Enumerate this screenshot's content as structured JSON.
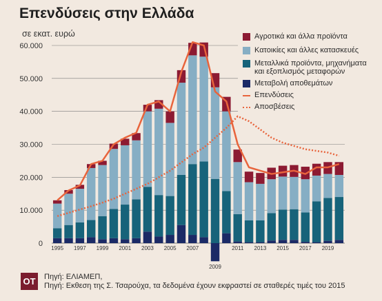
{
  "title": "Επενδύσεις στην Ελλάδα",
  "unit_label": "σε εκατ. ευρώ",
  "colors": {
    "agri": "#8c1a32",
    "housing": "#86aec4",
    "machinery": "#17637a",
    "inventory": "#1b2a66",
    "investment_line": "#e8643c",
    "depreciation_line": "#e8643c"
  },
  "legend": [
    {
      "key": "agri",
      "label": "Αγροτικά και άλλα προϊόντα"
    },
    {
      "key": "housing",
      "label": "Κατοικίες και άλλες κατασκευές"
    },
    {
      "key": "machinery",
      "label": "Μεταλλικά προϊόντα, μηχανήματα και εξοπλισμός μεταφορών"
    },
    {
      "key": "inventory",
      "label": "Μεταβολή αποθεμάτων"
    },
    {
      "key": "investment_line",
      "label": "Επενδύσεις"
    },
    {
      "key": "depreciation_line",
      "label": "Αποσβέσεις"
    }
  ],
  "footer": {
    "badge": "ΟΤ",
    "source_line1": "Πηγή: ΕΛΙΑΜΕΠ,",
    "source_line2": "Πηγή: Εκθεση της Σ. Τσαρούχα, τα δεδομένα έχουν εκφραστεί σε σταθερές τιμές του 2015"
  },
  "chart_data": {
    "type": "bar",
    "stacked": true,
    "categories": [
      "1995",
      "1996",
      "1997",
      "1998",
      "1999",
      "2000",
      "2001",
      "2002",
      "2003",
      "2004",
      "2005",
      "2006",
      "2007",
      "2008",
      "2009",
      "2010",
      "2011",
      "2012",
      "2013",
      "2014",
      "2015",
      "2016",
      "2017",
      "2018",
      "2019",
      "2020"
    ],
    "x_tick_labels": [
      "1995",
      "1997",
      "1999",
      "2001",
      "2003",
      "2005",
      "2007",
      "2009",
      "2011",
      "2013",
      "2015",
      "2017",
      "2019"
    ],
    "ylim": [
      -6000,
      62000
    ],
    "y_ticks": [
      0,
      10000,
      20000,
      30000,
      40000,
      50000,
      60000
    ],
    "y_tick_labels": [
      "0",
      "10.000",
      "20.000",
      "30.000",
      "40.000",
      "50.000",
      "60.000"
    ],
    "series": [
      {
        "name": "Μεταβολή αποθεμάτων",
        "key": "inventory",
        "values": [
          1500,
          1500,
          1500,
          1800,
          1200,
          1500,
          1200,
          1500,
          3500,
          2000,
          2500,
          5500,
          2500,
          1800,
          -5500,
          3000,
          500,
          300,
          300,
          800,
          1000,
          1000,
          400,
          300,
          700,
          1000
        ]
      },
      {
        "name": "Μεταλλικά προϊόντα, μηχανήματα και εξοπλισμός μεταφορών",
        "key": "machinery",
        "values": [
          3000,
          4000,
          4800,
          5200,
          7000,
          8900,
          10500,
          11800,
          13600,
          12600,
          11800,
          15200,
          21500,
          23000,
          19500,
          12800,
          8300,
          6600,
          6600,
          8300,
          9200,
          9300,
          8900,
          12400,
          13000,
          13000
        ]
      },
      {
        "name": "Κατοικίες και άλλες κατασκευές",
        "key": "housing",
        "values": [
          7500,
          9500,
          10200,
          15800,
          15500,
          18200,
          18000,
          17900,
          22900,
          26200,
          22200,
          28000,
          33000,
          31800,
          27800,
          24200,
          15800,
          11600,
          11100,
          10300,
          10000,
          9800,
          10100,
          7800,
          7300,
          6700
        ]
      },
      {
        "name": "Αγροτικά και άλλα προϊόντα",
        "key": "agri",
        "values": [
          1000,
          1100,
          1200,
          1200,
          1300,
          1600,
          2000,
          2200,
          2000,
          2600,
          3500,
          3800,
          3800,
          4300,
          4300,
          4400,
          3800,
          3200,
          3300,
          3500,
          3300,
          3600,
          3800,
          3600,
          3600,
          3900
        ]
      }
    ],
    "investment": [
      13000,
      16000,
      17500,
      24000,
      25000,
      30000,
      32000,
      33500,
      42000,
      43000,
      40000,
      52000,
      61000,
      60000,
      46000,
      43000,
      30000,
      23000,
      22000,
      21000,
      21500,
      22000,
      21000,
      23000,
      23000,
      24000
    ],
    "depreciation": [
      8200,
      9200,
      10200,
      11200,
      12300,
      13500,
      15000,
      16500,
      18000,
      20000,
      22000,
      24500,
      27000,
      29000,
      32000,
      35000,
      38500,
      37000,
      34500,
      32000,
      30500,
      29500,
      28500,
      28000,
      27500,
      26500
    ]
  }
}
